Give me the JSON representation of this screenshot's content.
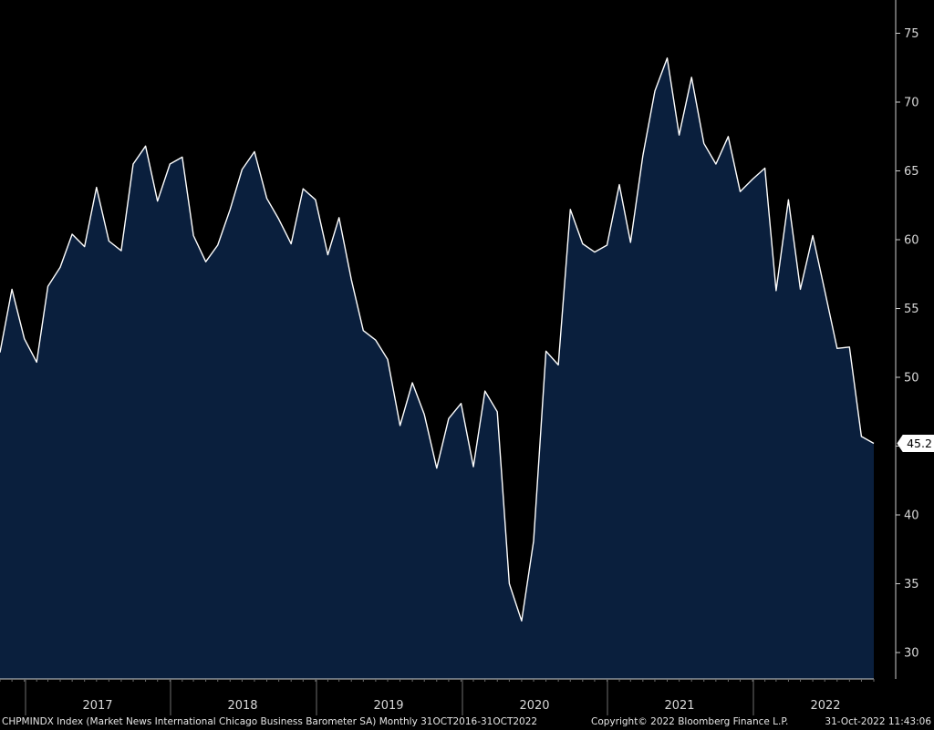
{
  "chart_data": {
    "type": "area",
    "title": "",
    "xlabel": "",
    "ylabel": "",
    "ylim": [
      28,
      77
    ],
    "y_ticks": [
      30,
      35,
      40,
      45,
      50,
      55,
      60,
      65,
      70,
      75
    ],
    "year_labels": [
      "2017",
      "2018",
      "2019",
      "2020",
      "2021",
      "2022"
    ],
    "last_value_label": "45.2",
    "grid": false,
    "colors": {
      "background": "#000000",
      "fill": "#0a1f3d",
      "line": "#ffffff",
      "axis": "#cccccc"
    },
    "series": [
      {
        "x": [
          "2016-10-31",
          "2016-11-30",
          "2016-12-31",
          "2017-01-31",
          "2017-02-28",
          "2017-03-31",
          "2017-04-30",
          "2017-05-31",
          "2017-06-30",
          "2017-07-31",
          "2017-08-31",
          "2017-09-30",
          "2017-10-31",
          "2017-11-30",
          "2017-12-31",
          "2018-01-31",
          "2018-02-28",
          "2018-03-31",
          "2018-04-30",
          "2018-05-31",
          "2018-06-30",
          "2018-07-31",
          "2018-08-31",
          "2018-09-30",
          "2018-10-31",
          "2018-11-30",
          "2018-12-31",
          "2019-01-31",
          "2019-02-28",
          "2019-03-31",
          "2019-04-30",
          "2019-05-31",
          "2019-06-30",
          "2019-07-31",
          "2019-08-31",
          "2019-09-30",
          "2019-10-31",
          "2019-11-30",
          "2019-12-31",
          "2020-01-31",
          "2020-02-29",
          "2020-03-31",
          "2020-04-30",
          "2020-05-31",
          "2020-06-30",
          "2020-07-31",
          "2020-08-31",
          "2020-09-30",
          "2020-10-31",
          "2020-11-30",
          "2020-12-31",
          "2021-01-31",
          "2021-02-28",
          "2021-03-31",
          "2021-04-30",
          "2021-05-31",
          "2021-06-30",
          "2021-07-31",
          "2021-08-31",
          "2021-09-30",
          "2021-10-31",
          "2021-11-30",
          "2021-12-31",
          "2022-01-31",
          "2022-02-28",
          "2022-03-31",
          "2022-04-30",
          "2022-05-31",
          "2022-06-30",
          "2022-07-31",
          "2022-08-31",
          "2022-09-30",
          "2022-10-31"
        ],
        "values": [
          51.8,
          56.4,
          52.8,
          51.1,
          56.6,
          58.0,
          60.4,
          59.5,
          63.8,
          59.9,
          59.2,
          65.5,
          66.8,
          62.8,
          65.5,
          66.0,
          60.3,
          58.4,
          59.6,
          62.2,
          65.1,
          66.4,
          63.0,
          61.5,
          59.7,
          63.7,
          62.9,
          58.9,
          61.6,
          57.1,
          53.4,
          52.7,
          51.3,
          46.5,
          49.6,
          47.3,
          43.4,
          47.0,
          48.1,
          43.5,
          49.0,
          47.5,
          35.0,
          32.3,
          38.1,
          51.9,
          50.9,
          62.2,
          59.7,
          59.1,
          59.6,
          64.0,
          59.8,
          66.1,
          70.8,
          73.2,
          67.6,
          71.8,
          67.0,
          65.5,
          67.5,
          63.5,
          64.4,
          65.2,
          56.3,
          62.9,
          56.4,
          60.3,
          56.3,
          52.1,
          52.2,
          45.7,
          45.2
        ]
      }
    ]
  },
  "footer": {
    "index_text": "CHPMINDX Index (Market News International Chicago Business Barometer SA)  Monthly 31OCT2016-31OCT2022",
    "copyright": "Copyright© 2022 Bloomberg Finance L.P.",
    "timestamp": "31-Oct-2022 11:43:06"
  }
}
